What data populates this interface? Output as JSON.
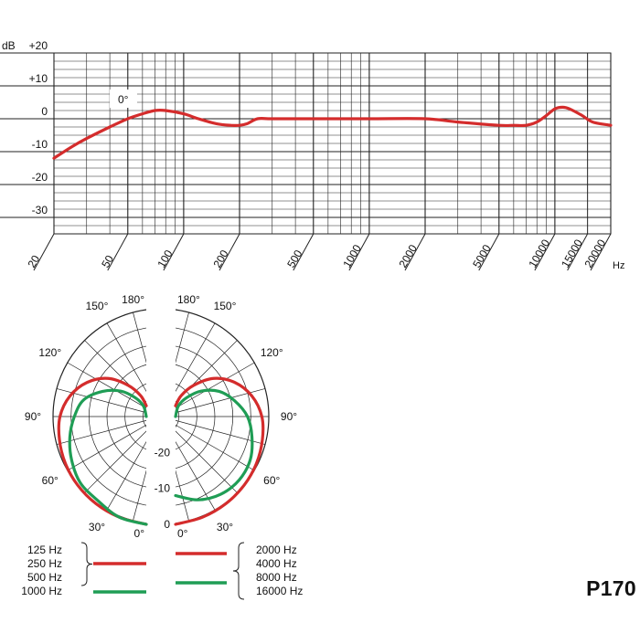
{
  "product": {
    "label": "P170"
  },
  "chart_data": [
    {
      "type": "line",
      "title": "",
      "xlabel": "Hz",
      "ylabel": "dB",
      "x_scale": "log",
      "xlim": [
        20,
        20000
      ],
      "ylim": [
        -35,
        20
      ],
      "x_tick_labels": [
        "20",
        "50",
        "100",
        "200",
        "500",
        "1000",
        "2000",
        "5000",
        "10000",
        "15000",
        "20000"
      ],
      "y_tick_labels": [
        "+20",
        "+10",
        "0",
        "-10",
        "-20",
        "-30"
      ],
      "annotation": "0°",
      "line_color": "#d42c2c",
      "grid": true,
      "series": [
        {
          "x": [
            20,
            25,
            30,
            40,
            50,
            60,
            70,
            80,
            100,
            120,
            150,
            180,
            200,
            220,
            250,
            300,
            500,
            1000,
            2000,
            3000,
            5000,
            6000,
            7000,
            8000,
            9000,
            10000,
            11000,
            12000,
            14000,
            16000,
            20000
          ],
          "y": [
            -12,
            -8.5,
            -6,
            -2.5,
            0,
            1.5,
            2.5,
            2.5,
            1.5,
            0,
            -1.5,
            -2,
            -2,
            -1.5,
            0,
            0,
            0,
            0,
            0,
            -1,
            -2,
            -2,
            -2,
            -1,
            1,
            3,
            3.5,
            3,
            1,
            -1,
            -2
          ]
        }
      ]
    },
    {
      "type": "polar",
      "title": "",
      "angle_labels": [
        "180°",
        "150°",
        "120°",
        "90°",
        "60°",
        "30°",
        "0°"
      ],
      "radius_labels": [
        "-20",
        "-10",
        "0"
      ],
      "grid": true,
      "legend_position": "bottom",
      "legend": {
        "left_group": [
          "125 Hz",
          "250 Hz",
          "500 Hz",
          "1000 Hz"
        ],
        "right_group": [
          "2000 Hz",
          "4000 Hz",
          "8000 Hz",
          "16000 Hz"
        ],
        "left_colors": [
          "#d42c2c",
          "#1f9d55"
        ],
        "right_colors": [
          "#d42c2c",
          "#1f9d55"
        ]
      },
      "series": [
        {
          "group": "125 Hz, 250 Hz, 500 Hz",
          "color": "#d42c2c",
          "side": "left",
          "angles": [
            0,
            15,
            30,
            45,
            60,
            75,
            90,
            105,
            120,
            135,
            150,
            165,
            180
          ],
          "levels_db": [
            0,
            -1,
            -2,
            -3,
            -4,
            -5,
            -6,
            -8,
            -11,
            -15,
            -20,
            -24,
            -27
          ]
        },
        {
          "group": "1000 Hz",
          "color": "#1f9d55",
          "side": "left",
          "angles": [
            0,
            15,
            30,
            45,
            60,
            75,
            90,
            105,
            120,
            135,
            150,
            165,
            180
          ],
          "levels_db": [
            0,
            -1,
            -3,
            -4,
            -6,
            -8,
            -10,
            -12,
            -16,
            -20,
            -24,
            -27,
            -30
          ]
        },
        {
          "group": "2000 Hz, 4000 Hz",
          "color": "#d42c2c",
          "side": "right",
          "angles": [
            0,
            15,
            30,
            45,
            60,
            75,
            90,
            105,
            120,
            135,
            150,
            165,
            180
          ],
          "levels_db": [
            0,
            -1,
            -2,
            -3,
            -4,
            -5,
            -6,
            -8,
            -11,
            -15,
            -20,
            -24,
            -27
          ]
        },
        {
          "group": "8000 Hz, 16000 Hz",
          "color": "#1f9d55",
          "side": "right",
          "angles": [
            0,
            15,
            30,
            45,
            60,
            75,
            90,
            105,
            120,
            135,
            150,
            165,
            180
          ],
          "levels_db": [
            -8,
            -6,
            -5,
            -5,
            -6,
            -8,
            -10,
            -13,
            -16,
            -20,
            -24,
            -27,
            -30
          ]
        }
      ]
    }
  ]
}
